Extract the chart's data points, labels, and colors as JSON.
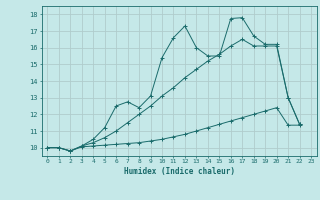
{
  "xlabel": "Humidex (Indice chaleur)",
  "xlim": [
    -0.5,
    23.5
  ],
  "ylim": [
    9.5,
    18.5
  ],
  "xticks": [
    0,
    1,
    2,
    3,
    4,
    5,
    6,
    7,
    8,
    9,
    10,
    11,
    12,
    13,
    14,
    15,
    16,
    17,
    18,
    19,
    20,
    21,
    22,
    23
  ],
  "yticks": [
    10,
    11,
    12,
    13,
    14,
    15,
    16,
    17,
    18
  ],
  "background_color": "#c5e8e8",
  "grid_color": "#b0cccc",
  "line_color": "#1a6b6b",
  "line1_x": [
    0,
    1,
    2,
    3,
    4,
    5,
    6,
    7,
    8,
    9,
    10,
    11,
    12,
    13,
    14,
    15,
    16,
    17,
    18,
    19,
    20,
    21,
    22
  ],
  "line1_y": [
    10,
    10,
    9.8,
    10.05,
    10.1,
    10.15,
    10.2,
    10.25,
    10.3,
    10.4,
    10.5,
    10.65,
    10.8,
    11.0,
    11.2,
    11.4,
    11.6,
    11.8,
    12.0,
    12.2,
    12.4,
    11.35,
    11.35
  ],
  "line2_x": [
    0,
    1,
    2,
    3,
    4,
    5,
    6,
    7,
    8,
    9,
    10,
    11,
    12,
    13,
    14,
    15,
    16,
    17,
    18,
    19,
    20,
    21,
    22
  ],
  "line2_y": [
    10,
    10,
    9.8,
    10.1,
    10.3,
    10.6,
    11.0,
    11.5,
    12.0,
    12.5,
    13.1,
    13.6,
    14.2,
    14.7,
    15.2,
    15.6,
    16.1,
    16.5,
    16.1,
    16.1,
    16.1,
    13.0,
    11.4
  ],
  "line3_x": [
    0,
    1,
    2,
    3,
    4,
    5,
    6,
    7,
    8,
    9,
    10,
    11,
    12,
    13,
    14,
    15,
    16,
    17,
    18,
    19,
    20,
    21,
    22
  ],
  "line3_y": [
    10,
    10,
    9.8,
    10.1,
    10.5,
    11.2,
    12.5,
    12.75,
    12.4,
    13.1,
    15.4,
    16.6,
    17.3,
    16.0,
    15.5,
    15.5,
    17.75,
    17.8,
    16.7,
    16.2,
    16.2,
    13.0,
    11.4
  ],
  "figsize": [
    3.2,
    2.0
  ],
  "dpi": 100
}
